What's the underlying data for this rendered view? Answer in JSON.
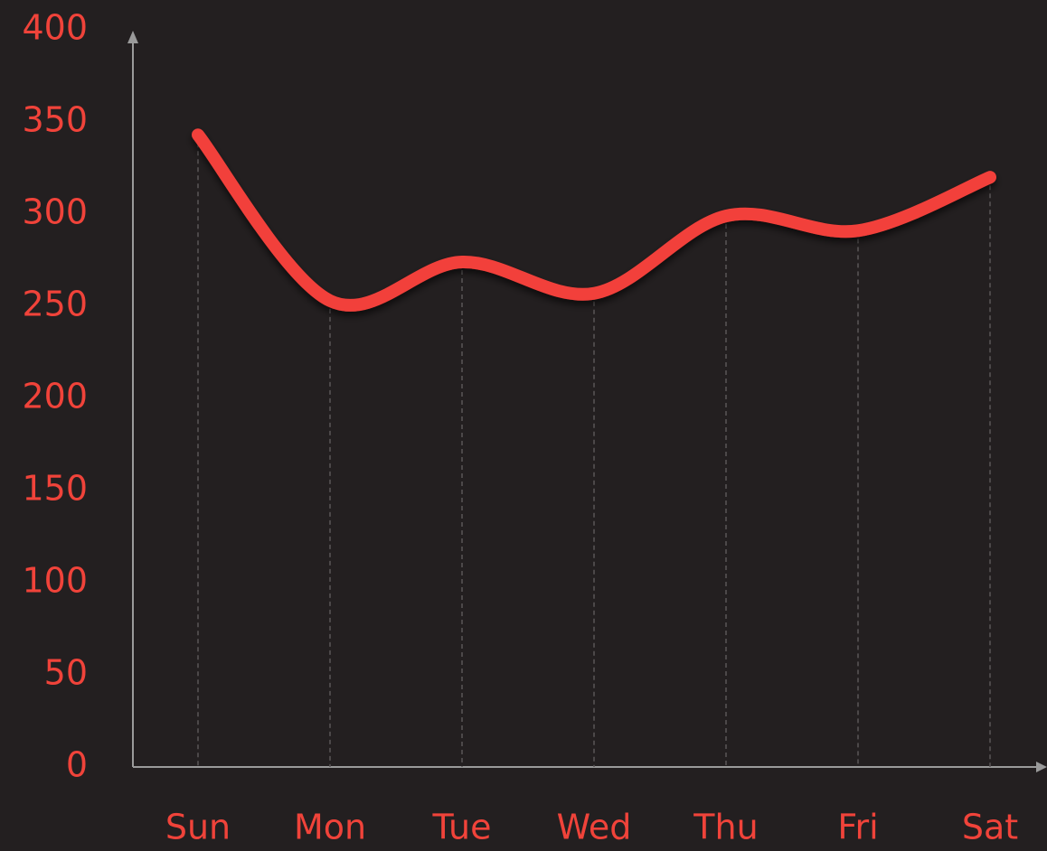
{
  "chart_data": {
    "type": "line",
    "categories": [
      "Sun",
      "Mon",
      "Tue",
      "Wed",
      "Thu",
      "Fri",
      "Sat"
    ],
    "series": [
      {
        "color": "#f2403a",
        "values": [
          343,
          253,
          274,
          257,
          299,
          291,
          320
        ]
      }
    ],
    "ylim": [
      0,
      400
    ],
    "yticks": [
      0,
      50,
      100,
      150,
      200,
      250,
      300,
      350,
      400
    ],
    "smooth": true
  }
}
